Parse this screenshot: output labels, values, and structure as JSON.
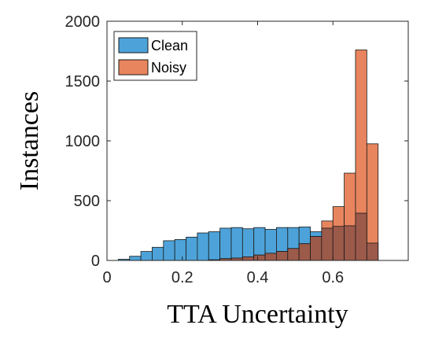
{
  "chart_data": {
    "type": "bar",
    "subtype": "overlapping-histogram",
    "title": "",
    "xlabel": "TTA Uncertainty",
    "ylabel": "Instances",
    "xlim": [
      0,
      0.8
    ],
    "ylim": [
      0,
      2000
    ],
    "xticks": [
      0,
      0.2,
      0.4,
      0.6
    ],
    "xtick_labels": [
      "0",
      "0.2",
      "0.4",
      "0.6"
    ],
    "yticks": [
      0,
      500,
      1000,
      1500,
      2000
    ],
    "ytick_labels": [
      "0",
      "500",
      "1000",
      "1500",
      "2000"
    ],
    "grid": false,
    "legend_position": "top-left",
    "bin_width": 0.03,
    "bin_left_edges": [
      0.03,
      0.06,
      0.09,
      0.12,
      0.15,
      0.18,
      0.21,
      0.24,
      0.27,
      0.3,
      0.33,
      0.36,
      0.39,
      0.42,
      0.45,
      0.48,
      0.51,
      0.54,
      0.57,
      0.6,
      0.63,
      0.66,
      0.69
    ],
    "series": [
      {
        "name": "Clean",
        "color": "#4DA3D9",
        "values": [
          10,
          35,
          75,
          110,
          165,
          175,
          195,
          230,
          240,
          270,
          275,
          265,
          275,
          260,
          275,
          275,
          280,
          240,
          270,
          285,
          290,
          395,
          145
        ]
      },
      {
        "name": "Noisy",
        "color": "#E8855E",
        "values": [
          0,
          0,
          0,
          0,
          0,
          0,
          0,
          0,
          5,
          15,
          20,
          30,
          45,
          60,
          75,
          100,
          140,
          200,
          330,
          450,
          730,
          1760,
          975
        ]
      }
    ]
  }
}
